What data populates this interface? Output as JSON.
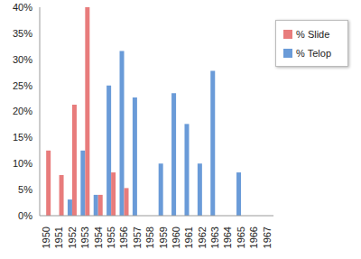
{
  "chart_data": {
    "type": "bar",
    "categories": [
      "1950",
      "1951",
      "1952",
      "1953",
      "1954",
      "1955",
      "1956",
      "1957",
      "1958",
      "1959",
      "1960",
      "1961",
      "1962",
      "1963",
      "1964",
      "1965",
      "1966",
      "1967"
    ],
    "series": [
      {
        "name": "% Telop",
        "color": "#6a9bd8",
        "values": [
          0,
          0,
          3.1,
          12.5,
          4,
          25,
          31.6,
          22.7,
          0,
          10,
          23.5,
          17.6,
          10,
          27.8,
          0,
          8.3,
          0,
          0
        ]
      },
      {
        "name": "% Slide",
        "color": "#e87c7c",
        "values": [
          12.5,
          7.8,
          21.3,
          40,
          4,
          8.3,
          5.3,
          0,
          0,
          0,
          0,
          0,
          0,
          0,
          0,
          0,
          0,
          0
        ]
      }
    ],
    "ylim": [
      0,
      40
    ],
    "yticks": [
      {
        "value": 0,
        "label": "0%"
      },
      {
        "value": 5,
        "label": "5%"
      },
      {
        "value": 10,
        "label": "10%"
      },
      {
        "value": 15,
        "label": "15%"
      },
      {
        "value": 20,
        "label": "20%"
      },
      {
        "value": 25,
        "label": "25%"
      },
      {
        "value": 30,
        "label": "30%"
      },
      {
        "value": 35,
        "label": "35%"
      },
      {
        "value": 40,
        "label": "40%"
      }
    ],
    "grid": false,
    "legend": "upper right"
  }
}
